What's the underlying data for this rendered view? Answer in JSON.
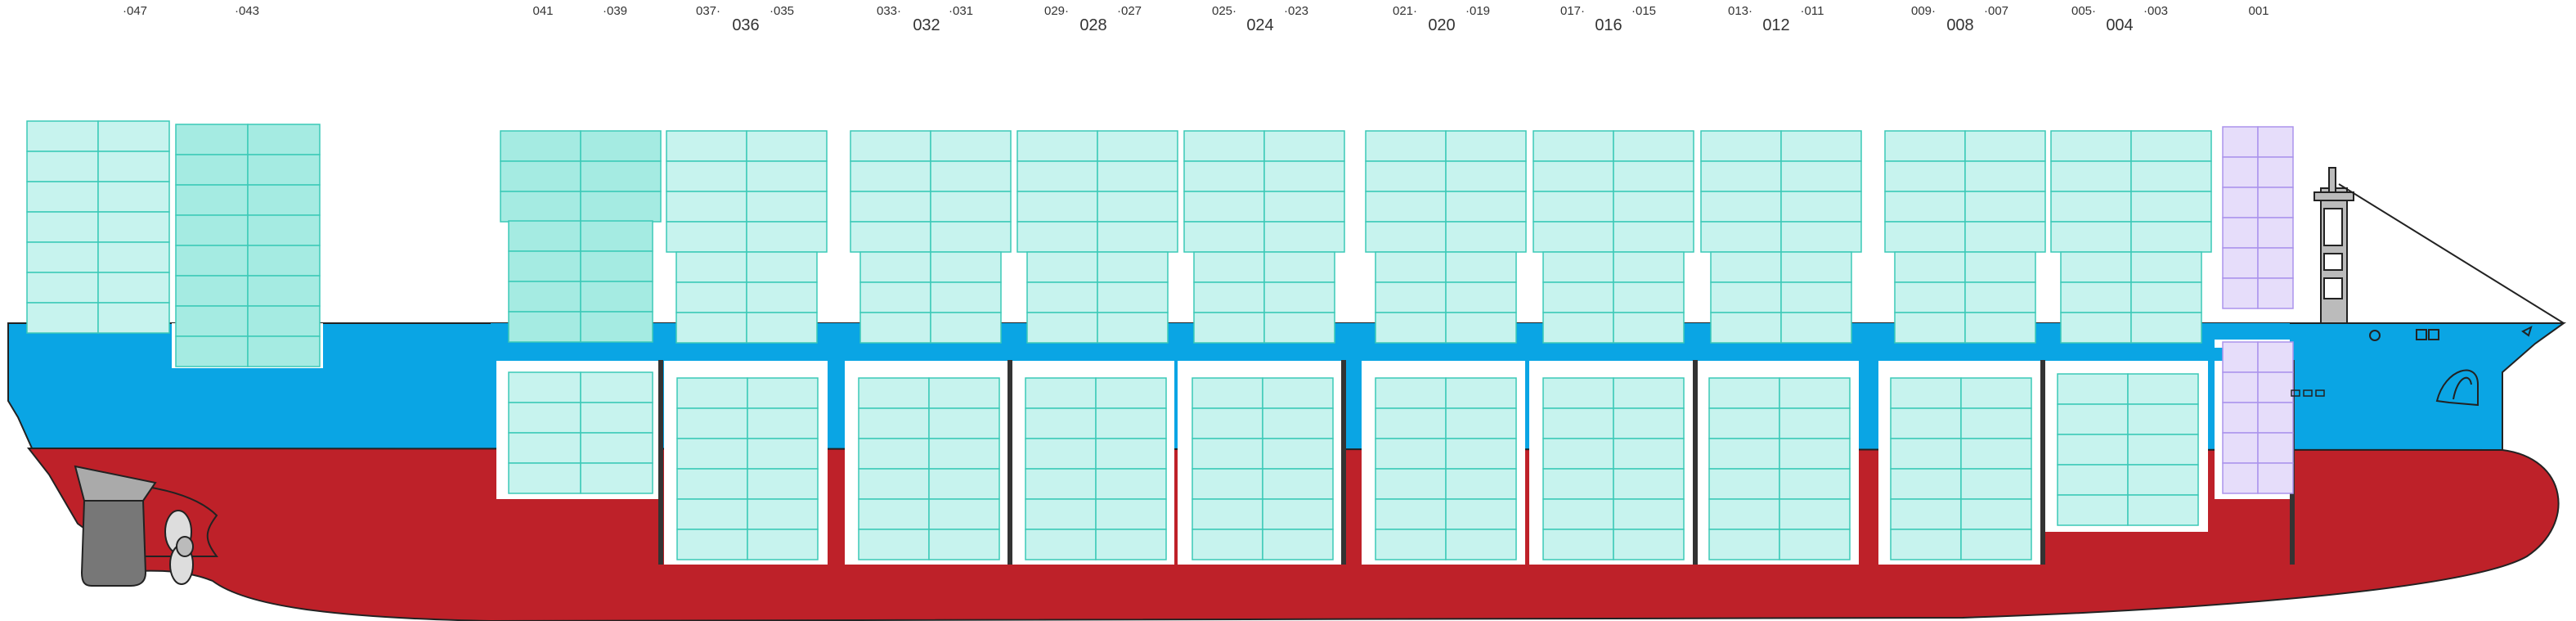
{
  "bay_labels": [
    {
      "text": "·047",
      "kind": "small"
    },
    {
      "text": "·043",
      "kind": "small"
    },
    {
      "text": "041",
      "kind": "small"
    },
    {
      "text": "·039",
      "kind": "small"
    },
    {
      "text": "037·",
      "kind": "small"
    },
    {
      "text": "036",
      "kind": "big"
    },
    {
      "text": "·035",
      "kind": "small"
    },
    {
      "text": "033·",
      "kind": "small"
    },
    {
      "text": "032",
      "kind": "big"
    },
    {
      "text": "·031",
      "kind": "small"
    },
    {
      "text": "029·",
      "kind": "small"
    },
    {
      "text": "028",
      "kind": "big"
    },
    {
      "text": "·027",
      "kind": "small"
    },
    {
      "text": "025·",
      "kind": "small"
    },
    {
      "text": "024",
      "kind": "big"
    },
    {
      "text": "·023",
      "kind": "small"
    },
    {
      "text": "021·",
      "kind": "small"
    },
    {
      "text": "020",
      "kind": "big"
    },
    {
      "text": "·019",
      "kind": "small"
    },
    {
      "text": "017·",
      "kind": "small"
    },
    {
      "text": "016",
      "kind": "big"
    },
    {
      "text": "·015",
      "kind": "small"
    },
    {
      "text": "013·",
      "kind": "small"
    },
    {
      "text": "012",
      "kind": "big"
    },
    {
      "text": "·011",
      "kind": "small"
    },
    {
      "text": "009·",
      "kind": "small"
    },
    {
      "text": "008",
      "kind": "big"
    },
    {
      "text": "·007",
      "kind": "small"
    },
    {
      "text": "005·",
      "kind": "small"
    },
    {
      "text": "004",
      "kind": "big"
    },
    {
      "text": "·003",
      "kind": "small"
    },
    {
      "text": "001",
      "kind": "small"
    }
  ],
  "colors": {
    "hull_red": "#be2129",
    "hull_blue": "#0aa5e4",
    "container_fill": "#c7f3ee",
    "container_fill_dark": "#a5ebe2",
    "container_stroke": "#3bc9b7",
    "special_fill": "#e6ddfa",
    "special_stroke": "#ab93ec",
    "machinery_grey": "#777777"
  }
}
